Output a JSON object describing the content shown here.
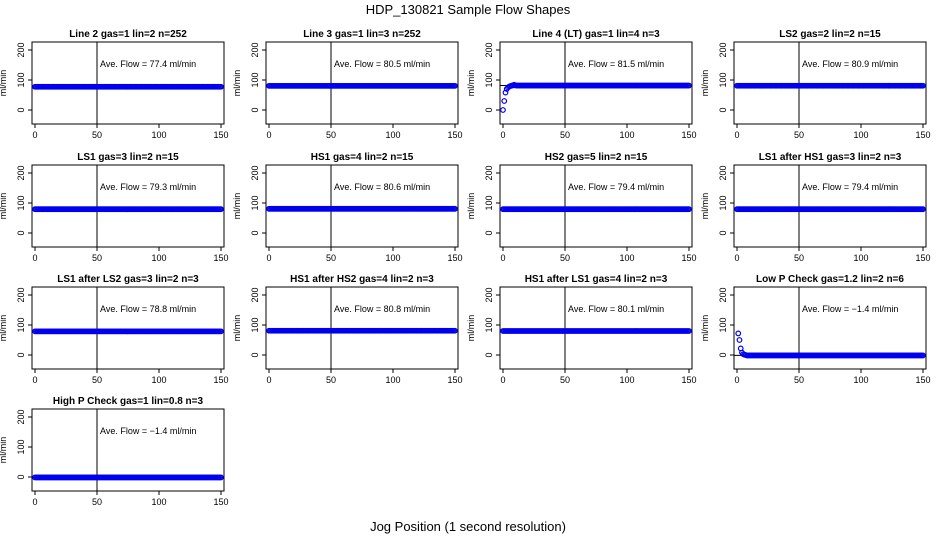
{
  "title": "HDP_130821  Sample Flow Shapes",
  "xlabel": "Jog Position (1 second resolution)",
  "colors": {
    "points": "#0000ee",
    "axes": "#000000",
    "background": "#ffffff"
  },
  "chart_data": [
    {
      "type": "scatter",
      "title": "Line 2 gas=1 lin=2 n=252",
      "annotation": "Ave. Flow = 77.4  ml/min",
      "ylabel": "ml/min",
      "xlim": [
        0,
        150
      ],
      "ylim": [
        -40,
        220
      ],
      "xticks": [
        "0",
        "50",
        "100",
        "150"
      ],
      "yticks": [
        "0",
        "100",
        "200"
      ],
      "vline_x": 50,
      "hline_y": 77.4,
      "series": [
        {
          "x_range": [
            0,
            150
          ],
          "x_step": 1,
          "values": [
            77.4
          ]
        }
      ]
    },
    {
      "type": "scatter",
      "title": "Line 3 gas=1 lin=3 n=252",
      "annotation": "Ave. Flow = 80.5  ml/min",
      "ylabel": "ml/min",
      "xlim": [
        0,
        150
      ],
      "ylim": [
        -40,
        220
      ],
      "xticks": [
        "0",
        "50",
        "100",
        "150"
      ],
      "yticks": [
        "0",
        "100",
        "200"
      ],
      "vline_x": 50,
      "hline_y": 80.5,
      "series": [
        {
          "x_range": [
            0,
            150
          ],
          "x_step": 1,
          "values": [
            80.5
          ]
        }
      ]
    },
    {
      "type": "scatter",
      "title": "Line 4 (LT) gas=1 lin=4 n=3",
      "annotation": "Ave. Flow = 81.5  ml/min",
      "ylabel": "ml/min",
      "xlim": [
        0,
        150
      ],
      "ylim": [
        -40,
        220
      ],
      "xticks": [
        "0",
        "50",
        "100",
        "150"
      ],
      "yticks": [
        "0",
        "100",
        "200"
      ],
      "vline_x": 50,
      "hline_y": 81.5,
      "series": [
        {
          "x_range": [
            0,
            150
          ],
          "x_step": 1,
          "values": [
            0,
            30,
            58,
            70,
            75,
            78,
            80,
            81,
            82,
            84,
            82,
            81.5
          ]
        }
      ]
    },
    {
      "type": "scatter",
      "title": "LS2 gas=2 lin=2 n=15",
      "annotation": "Ave. Flow = 80.9  ml/min",
      "ylabel": "ml/min",
      "xlim": [
        0,
        150
      ],
      "ylim": [
        -40,
        220
      ],
      "xticks": [
        "0",
        "50",
        "100",
        "150"
      ],
      "yticks": [
        "0",
        "100",
        "200"
      ],
      "vline_x": 50,
      "hline_y": 80.9,
      "series": [
        {
          "x_range": [
            0,
            150
          ],
          "x_step": 1,
          "values": [
            80.9
          ]
        }
      ]
    },
    {
      "type": "scatter",
      "title": "LS1 gas=3 lin=2 n=15",
      "annotation": "Ave. Flow = 79.3  ml/min",
      "ylabel": "ml/min",
      "xlim": [
        0,
        150
      ],
      "ylim": [
        -40,
        220
      ],
      "xticks": [
        "0",
        "50",
        "100",
        "150"
      ],
      "yticks": [
        "0",
        "100",
        "200"
      ],
      "vline_x": 50,
      "hline_y": 79.3,
      "series": [
        {
          "x_range": [
            0,
            150
          ],
          "x_step": 1,
          "values": [
            79.3
          ]
        }
      ]
    },
    {
      "type": "scatter",
      "title": "HS1 gas=4 lin=2 n=15",
      "annotation": "Ave. Flow = 80.6  ml/min",
      "ylabel": "ml/min",
      "xlim": [
        0,
        150
      ],
      "ylim": [
        -40,
        220
      ],
      "xticks": [
        "0",
        "50",
        "100",
        "150"
      ],
      "yticks": [
        "0",
        "100",
        "200"
      ],
      "vline_x": 50,
      "hline_y": 80.6,
      "series": [
        {
          "x_range": [
            0,
            150
          ],
          "x_step": 1,
          "values": [
            80.6
          ]
        }
      ]
    },
    {
      "type": "scatter",
      "title": "HS2 gas=5 lin=2 n=15",
      "annotation": "Ave. Flow = 79.4  ml/min",
      "ylabel": "ml/min",
      "xlim": [
        0,
        150
      ],
      "ylim": [
        -40,
        220
      ],
      "xticks": [
        "0",
        "50",
        "100",
        "150"
      ],
      "yticks": [
        "0",
        "100",
        "200"
      ],
      "vline_x": 50,
      "hline_y": 79.4,
      "series": [
        {
          "x_range": [
            0,
            150
          ],
          "x_step": 1,
          "values": [
            79.4
          ]
        }
      ]
    },
    {
      "type": "scatter",
      "title": "LS1 after HS1 gas=3 lin=2 n=3",
      "annotation": "Ave. Flow = 79.4  ml/min",
      "ylabel": "ml/min",
      "xlim": [
        0,
        150
      ],
      "ylim": [
        -40,
        220
      ],
      "xticks": [
        "0",
        "50",
        "100",
        "150"
      ],
      "yticks": [
        "0",
        "100",
        "200"
      ],
      "vline_x": 50,
      "hline_y": 79.4,
      "series": [
        {
          "x_range": [
            0,
            150
          ],
          "x_step": 1,
          "values": [
            79.4
          ]
        }
      ]
    },
    {
      "type": "scatter",
      "title": "LS1 after LS2 gas=3 lin=2 n=3",
      "annotation": "Ave. Flow = 78.8  ml/min",
      "ylabel": "ml/min",
      "xlim": [
        0,
        150
      ],
      "ylim": [
        -40,
        220
      ],
      "xticks": [
        "0",
        "50",
        "100",
        "150"
      ],
      "yticks": [
        "0",
        "100",
        "200"
      ],
      "vline_x": 50,
      "hline_y": 78.8,
      "series": [
        {
          "x_range": [
            0,
            150
          ],
          "x_step": 1,
          "values": [
            78.8
          ]
        }
      ]
    },
    {
      "type": "scatter",
      "title": "HS1 after HS2 gas=4 lin=2 n=3",
      "annotation": "Ave. Flow = 80.8  ml/min",
      "ylabel": "ml/min",
      "xlim": [
        0,
        150
      ],
      "ylim": [
        -40,
        220
      ],
      "xticks": [
        "0",
        "50",
        "100",
        "150"
      ],
      "yticks": [
        "0",
        "100",
        "200"
      ],
      "vline_x": 50,
      "hline_y": 80.8,
      "series": [
        {
          "x_range": [
            0,
            150
          ],
          "x_step": 1,
          "values": [
            80.8
          ]
        }
      ]
    },
    {
      "type": "scatter",
      "title": "HS1 after LS1 gas=4 lin=2 n=3",
      "annotation": "Ave. Flow = 80.1  ml/min",
      "ylabel": "ml/min",
      "xlim": [
        0,
        150
      ],
      "ylim": [
        -40,
        220
      ],
      "xticks": [
        "0",
        "50",
        "100",
        "150"
      ],
      "yticks": [
        "0",
        "100",
        "200"
      ],
      "vline_x": 50,
      "hline_y": 80.1,
      "series": [
        {
          "x_range": [
            0,
            150
          ],
          "x_step": 1,
          "values": [
            80.1
          ]
        }
      ]
    },
    {
      "type": "scatter",
      "title": "Low P Check gas=1.2 lin=2 n=6",
      "annotation": "Ave. Flow = −1.4  ml/min",
      "ylabel": "ml/min",
      "xlim": [
        0,
        150
      ],
      "ylim": [
        -40,
        220
      ],
      "xticks": [
        "0",
        "50",
        "100",
        "150"
      ],
      "yticks": [
        "0",
        "100",
        "200"
      ],
      "vline_x": 50,
      "hline_y": -1.4,
      "series": [
        {
          "x_range": [
            1,
            150
          ],
          "x_step": 1,
          "values": [
            72,
            50,
            22,
            8,
            3,
            1,
            0,
            -1.4
          ]
        }
      ]
    },
    {
      "type": "scatter",
      "title": "High P Check gas=1 lin=0.8 n=3",
      "annotation": "Ave. Flow = −1.4  ml/min",
      "ylabel": "ml/min",
      "xlim": [
        0,
        150
      ],
      "ylim": [
        -40,
        220
      ],
      "xticks": [
        "0",
        "50",
        "100",
        "150"
      ],
      "yticks": [
        "0",
        "100",
        "200"
      ],
      "vline_x": 50,
      "hline_y": -1.4,
      "series": [
        {
          "x_range": [
            0,
            150
          ],
          "x_step": 1,
          "values": [
            -1.4
          ]
        }
      ]
    }
  ]
}
